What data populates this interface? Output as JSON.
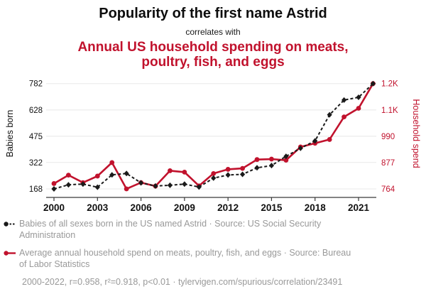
{
  "header": {
    "title": "Popularity of the first name Astrid",
    "connector": "correlates with",
    "subtitle": "Annual US household spending on meats, poultry, fish, and eggs"
  },
  "colors": {
    "accent_red": "#c1122d",
    "series_black": "#1a1a1a",
    "legend_gray": "#999999",
    "gridline": "#e8e8e8",
    "axis": "#3a3a3a"
  },
  "chart_data": {
    "type": "line",
    "x": [
      2000,
      2001,
      2002,
      2003,
      2004,
      2005,
      2006,
      2007,
      2008,
      2009,
      2010,
      2011,
      2012,
      2013,
      2014,
      2015,
      2016,
      2017,
      2018,
      2019,
      2020,
      2021,
      2022
    ],
    "series": [
      {
        "name": "Babies of all sexes born in the US named Astrid",
        "data_name": "babies-series",
        "axis": "left",
        "color": "#1a1a1a",
        "style": "dashed",
        "marker": "diamond",
        "values": [
          168,
          192,
          196,
          178,
          250,
          258,
          203,
          185,
          189,
          196,
          179,
          231,
          249,
          253,
          291,
          304,
          358,
          405,
          448,
          600,
          686,
          702,
          782
        ]
      },
      {
        "name": "Average annual household spend on meats, poultry, fish, and eggs",
        "data_name": "spend-series",
        "axis": "right",
        "color": "#c1122d",
        "style": "solid",
        "marker": "circle",
        "values": [
          787,
          823,
          791,
          819,
          877,
          764,
          791,
          776,
          842,
          836,
          777,
          830,
          848,
          852,
          890,
          892,
          887,
          944,
          960,
          976,
          1073,
          1110,
          1216
        ]
      }
    ],
    "left_axis": {
      "label": "Babies born",
      "range": [
        168,
        782
      ],
      "ticks": [
        {
          "value": 782,
          "label": "782"
        },
        {
          "value": 628,
          "label": "628"
        },
        {
          "value": 475,
          "label": "475"
        },
        {
          "value": 322,
          "label": "322"
        },
        {
          "value": 168,
          "label": "168"
        }
      ]
    },
    "right_axis": {
      "label": "Household spend",
      "range": [
        764,
        1216
      ],
      "ticks": [
        {
          "value": 1216,
          "label": "1.2K"
        },
        {
          "value": 1103,
          "label": "1.1K"
        },
        {
          "value": 990,
          "label": "990"
        },
        {
          "value": 877,
          "label": "877"
        },
        {
          "value": 764,
          "label": "764"
        }
      ]
    },
    "x_axis": {
      "range": [
        2000,
        2022
      ],
      "label_years": [
        2000,
        2003,
        2006,
        2009,
        2012,
        2015,
        2018,
        2021
      ]
    },
    "grid": "horizontal",
    "legend_position": "bottom"
  },
  "legend": {
    "items": [
      {
        "label": "Babies of all sexes born in the US named Astrid · Source: US Social Security Administration"
      },
      {
        "label": "Average annual household spend on meats, poultry, fish, and eggs · Source: Bureau of Labor Statistics"
      }
    ],
    "footnote": "2000-2022, r=0.958, r²=0.918, p<0.01 · tylervigen.com/spurious/correlation/23491"
  }
}
